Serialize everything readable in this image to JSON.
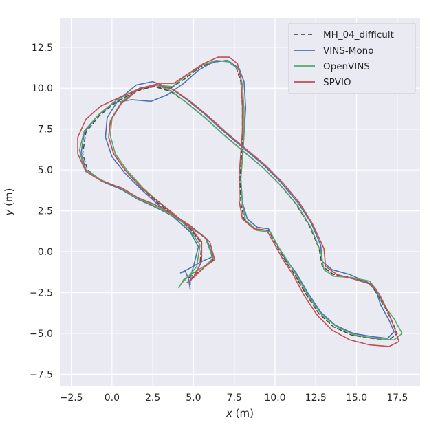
{
  "chart_data": {
    "type": "line",
    "xlabel": {
      "var": "x",
      "unit": " (m)"
    },
    "ylabel": {
      "var": "y",
      "unit": " (m)"
    },
    "xlim": [
      -3.2,
      18.9
    ],
    "ylim": [
      -8.2,
      14.3
    ],
    "xticks": [
      -2.5,
      0.0,
      2.5,
      5.0,
      7.5,
      10.0,
      12.5,
      15.0,
      17.5
    ],
    "xtick_labels": [
      "−2.5",
      "0.0",
      "2.5",
      "5.0",
      "7.5",
      "10.0",
      "12.5",
      "15.0",
      "17.5"
    ],
    "yticks": [
      -7.5,
      -5.0,
      -2.5,
      0.0,
      2.5,
      5.0,
      7.5,
      10.0,
      12.5
    ],
    "ytick_labels": [
      "−7.5",
      "−5.0",
      "−2.5",
      "0.0",
      "2.5",
      "5.0",
      "7.5",
      "10.0",
      "12.5"
    ],
    "grid": true,
    "background": "#eaeaf2",
    "legend_position": "top-right",
    "series": [
      {
        "name": "MH_04_difficult",
        "color": "#4d4d4d",
        "dash": "6,4",
        "points": [
          [
            4.7,
            -1.6
          ],
          [
            5.5,
            -1.1
          ],
          [
            6.2,
            -0.5
          ],
          [
            5.8,
            0.8
          ],
          [
            4.5,
            1.7
          ],
          [
            3.5,
            2.3
          ],
          [
            2.5,
            2.8
          ],
          [
            1.6,
            3.2
          ],
          [
            0.6,
            3.8
          ],
          [
            -0.6,
            4.3
          ],
          [
            -1.5,
            5.0
          ],
          [
            -1.8,
            6.0
          ],
          [
            -1.6,
            7.3
          ],
          [
            -0.8,
            8.3
          ],
          [
            0.2,
            9.1
          ],
          [
            1.4,
            9.8
          ],
          [
            2.5,
            10.1
          ],
          [
            3.6,
            10.0
          ],
          [
            4.5,
            10.6
          ],
          [
            5.4,
            11.3
          ],
          [
            6.3,
            11.6
          ],
          [
            7.0,
            11.7
          ],
          [
            7.6,
            11.3
          ],
          [
            7.9,
            10.4
          ],
          [
            8.0,
            8.8
          ],
          [
            8.0,
            7.2
          ],
          [
            7.95,
            5.8
          ],
          [
            7.85,
            4.5
          ],
          [
            7.9,
            3.0
          ],
          [
            8.1,
            2.0
          ],
          [
            8.8,
            1.4
          ],
          [
            9.6,
            1.3
          ],
          [
            10.1,
            0.4
          ],
          [
            10.6,
            -0.5
          ],
          [
            11.2,
            -1.4
          ],
          [
            11.9,
            -2.6
          ],
          [
            12.7,
            -3.8
          ],
          [
            13.6,
            -4.6
          ],
          [
            14.7,
            -5.1
          ],
          [
            15.9,
            -5.3
          ],
          [
            17.0,
            -5.4
          ],
          [
            17.5,
            -5.0
          ],
          [
            17.2,
            -4.3
          ],
          [
            16.8,
            -3.5
          ],
          [
            16.2,
            -2.5
          ],
          [
            15.8,
            -1.9
          ],
          [
            14.8,
            -1.6
          ],
          [
            13.6,
            -1.4
          ],
          [
            12.9,
            -0.9
          ],
          [
            12.7,
            0.2
          ],
          [
            12.1,
            1.6
          ],
          [
            11.3,
            2.9
          ],
          [
            10.3,
            4.1
          ],
          [
            9.2,
            5.2
          ],
          [
            8.0,
            6.2
          ],
          [
            6.8,
            7.2
          ],
          [
            5.7,
            8.2
          ],
          [
            4.6,
            9.1
          ],
          [
            3.6,
            9.8
          ],
          [
            2.6,
            10.1
          ],
          [
            1.6,
            9.9
          ],
          [
            0.5,
            9.0
          ],
          [
            -0.1,
            8.0
          ],
          [
            -0.2,
            7.0
          ],
          [
            0.1,
            6.0
          ],
          [
            0.8,
            5.0
          ],
          [
            1.8,
            3.9
          ],
          [
            2.8,
            3.0
          ],
          [
            3.8,
            2.2
          ],
          [
            4.8,
            1.4
          ],
          [
            5.5,
            0.5
          ],
          [
            5.4,
            -0.8
          ],
          [
            5.0,
            -1.5
          ],
          [
            4.7,
            -1.8
          ]
        ]
      },
      {
        "name": "VINS-Mono",
        "color": "#4c72b0",
        "dash": "",
        "points": [
          [
            4.8,
            -2.3
          ],
          [
            4.7,
            -1.7
          ],
          [
            4.5,
            -1.2
          ],
          [
            4.2,
            -1.3
          ],
          [
            4.8,
            -1.0
          ],
          [
            5.5,
            -0.6
          ],
          [
            6.2,
            -0.3
          ],
          [
            5.8,
            0.8
          ],
          [
            4.5,
            1.7
          ],
          [
            3.5,
            2.3
          ],
          [
            2.5,
            2.8
          ],
          [
            1.6,
            3.2
          ],
          [
            0.6,
            3.8
          ],
          [
            -0.6,
            4.3
          ],
          [
            -1.6,
            5.0
          ],
          [
            -1.9,
            6.0
          ],
          [
            -1.7,
            7.3
          ],
          [
            -0.9,
            8.3
          ],
          [
            0.1,
            9.1
          ],
          [
            1.2,
            9.3
          ],
          [
            2.4,
            9.2
          ],
          [
            3.4,
            9.6
          ],
          [
            4.4,
            10.3
          ],
          [
            5.3,
            11.1
          ],
          [
            6.2,
            11.6
          ],
          [
            7.1,
            11.7
          ],
          [
            7.8,
            11.2
          ],
          [
            8.1,
            10.4
          ],
          [
            8.2,
            8.8
          ],
          [
            8.1,
            7.2
          ],
          [
            8.0,
            5.8
          ],
          [
            7.9,
            4.5
          ],
          [
            8.0,
            3.0
          ],
          [
            8.3,
            2.0
          ],
          [
            8.9,
            1.5
          ],
          [
            9.6,
            1.4
          ],
          [
            10.1,
            0.5
          ],
          [
            10.6,
            -0.4
          ],
          [
            11.3,
            -1.3
          ],
          [
            12.0,
            -2.5
          ],
          [
            12.8,
            -3.7
          ],
          [
            13.7,
            -4.5
          ],
          [
            14.8,
            -5.0
          ],
          [
            16.0,
            -5.2
          ],
          [
            16.9,
            -5.3
          ],
          [
            17.3,
            -4.9
          ],
          [
            17.0,
            -4.2
          ],
          [
            16.5,
            -3.3
          ],
          [
            16.2,
            -2.4
          ],
          [
            15.7,
            -1.9
          ],
          [
            14.6,
            -1.4
          ],
          [
            13.5,
            -1.1
          ],
          [
            12.9,
            -0.6
          ],
          [
            12.8,
            0.4
          ],
          [
            12.2,
            1.8
          ],
          [
            11.4,
            3.0
          ],
          [
            10.4,
            4.2
          ],
          [
            9.3,
            5.3
          ],
          [
            8.1,
            6.3
          ],
          [
            6.8,
            7.4
          ],
          [
            5.7,
            8.4
          ],
          [
            4.6,
            9.3
          ],
          [
            3.6,
            10.0
          ],
          [
            2.5,
            10.4
          ],
          [
            1.5,
            10.2
          ],
          [
            0.4,
            9.3
          ],
          [
            -0.3,
            8.2
          ],
          [
            -0.4,
            7.0
          ],
          [
            0.0,
            5.8
          ],
          [
            0.8,
            4.8
          ],
          [
            1.8,
            3.8
          ],
          [
            2.8,
            2.9
          ],
          [
            3.8,
            2.1
          ],
          [
            4.8,
            1.2
          ],
          [
            5.3,
            0.3
          ],
          [
            5.0,
            -0.9
          ],
          [
            4.8,
            -1.6
          ],
          [
            4.8,
            -2.0
          ]
        ]
      },
      {
        "name": "OpenVINS",
        "color": "#55a868",
        "dash": "",
        "points": [
          [
            4.1,
            -2.2
          ],
          [
            4.4,
            -1.7
          ],
          [
            5.0,
            -1.3
          ],
          [
            5.8,
            -0.8
          ],
          [
            6.2,
            -0.4
          ],
          [
            5.7,
            0.9
          ],
          [
            4.4,
            1.8
          ],
          [
            3.4,
            2.4
          ],
          [
            2.4,
            2.9
          ],
          [
            1.5,
            3.3
          ],
          [
            0.5,
            3.9
          ],
          [
            -0.7,
            4.4
          ],
          [
            -1.7,
            5.1
          ],
          [
            -2.0,
            6.2
          ],
          [
            -1.7,
            7.4
          ],
          [
            -0.8,
            8.4
          ],
          [
            0.3,
            9.3
          ],
          [
            1.5,
            9.9
          ],
          [
            2.6,
            10.2
          ],
          [
            3.7,
            10.1
          ],
          [
            4.6,
            10.8
          ],
          [
            5.5,
            11.4
          ],
          [
            6.4,
            11.7
          ],
          [
            7.2,
            11.6
          ],
          [
            7.8,
            11.1
          ],
          [
            8.0,
            10.2
          ],
          [
            8.1,
            8.7
          ],
          [
            8.1,
            7.1
          ],
          [
            8.0,
            5.7
          ],
          [
            7.9,
            4.4
          ],
          [
            8.0,
            2.9
          ],
          [
            8.2,
            1.9
          ],
          [
            8.9,
            1.3
          ],
          [
            9.7,
            1.2
          ],
          [
            10.2,
            0.3
          ],
          [
            10.8,
            -0.6
          ],
          [
            11.4,
            -1.6
          ],
          [
            12.1,
            -2.8
          ],
          [
            12.9,
            -3.9
          ],
          [
            13.8,
            -4.6
          ],
          [
            14.9,
            -5.1
          ],
          [
            16.1,
            -5.3
          ],
          [
            17.3,
            -5.4
          ],
          [
            17.8,
            -5.0
          ],
          [
            17.3,
            -4.1
          ],
          [
            16.7,
            -3.3
          ],
          [
            16.2,
            -2.3
          ],
          [
            15.8,
            -1.8
          ],
          [
            14.8,
            -1.6
          ],
          [
            13.6,
            -1.5
          ],
          [
            13.0,
            -1.1
          ],
          [
            12.8,
            0.0
          ],
          [
            12.2,
            1.5
          ],
          [
            11.4,
            2.8
          ],
          [
            10.4,
            4.0
          ],
          [
            9.3,
            5.1
          ],
          [
            8.1,
            6.1
          ],
          [
            6.9,
            7.1
          ],
          [
            5.8,
            8.1
          ],
          [
            4.7,
            9.0
          ],
          [
            3.7,
            9.8
          ],
          [
            2.7,
            10.2
          ],
          [
            1.7,
            10.0
          ],
          [
            0.6,
            9.2
          ],
          [
            0.0,
            8.2
          ],
          [
            -0.1,
            7.1
          ],
          [
            0.2,
            6.0
          ],
          [
            0.9,
            5.0
          ],
          [
            1.9,
            3.9
          ],
          [
            2.9,
            3.0
          ],
          [
            3.9,
            2.2
          ],
          [
            4.8,
            1.3
          ],
          [
            5.4,
            0.4
          ],
          [
            5.2,
            -0.9
          ],
          [
            4.7,
            -1.5
          ],
          [
            4.3,
            -1.9
          ]
        ]
      },
      {
        "name": "SPVIO",
        "color": "#c44e52",
        "dash": "",
        "points": [
          [
            4.6,
            -1.9
          ],
          [
            5.1,
            -1.5
          ],
          [
            5.7,
            -0.9
          ],
          [
            6.3,
            -0.5
          ],
          [
            6.0,
            0.6
          ],
          [
            4.8,
            1.6
          ],
          [
            3.7,
            2.3
          ],
          [
            2.6,
            2.9
          ],
          [
            1.6,
            3.3
          ],
          [
            0.6,
            3.9
          ],
          [
            -0.6,
            4.3
          ],
          [
            -1.6,
            4.9
          ],
          [
            -2.1,
            6.0
          ],
          [
            -2.1,
            7.0
          ],
          [
            -1.6,
            8.1
          ],
          [
            -0.7,
            8.9
          ],
          [
            0.6,
            9.5
          ],
          [
            1.8,
            10.0
          ],
          [
            2.9,
            10.3
          ],
          [
            3.8,
            10.3
          ],
          [
            4.7,
            10.9
          ],
          [
            5.6,
            11.5
          ],
          [
            6.5,
            11.9
          ],
          [
            7.2,
            11.9
          ],
          [
            7.7,
            11.5
          ],
          [
            7.9,
            10.6
          ],
          [
            8.0,
            9.0
          ],
          [
            8.0,
            7.4
          ],
          [
            7.9,
            6.0
          ],
          [
            7.8,
            4.7
          ],
          [
            7.8,
            3.1
          ],
          [
            8.0,
            2.0
          ],
          [
            8.7,
            1.4
          ],
          [
            9.5,
            1.3
          ],
          [
            10.0,
            0.4
          ],
          [
            10.5,
            -0.5
          ],
          [
            11.1,
            -1.4
          ],
          [
            11.8,
            -2.7
          ],
          [
            12.6,
            -3.9
          ],
          [
            13.5,
            -4.8
          ],
          [
            14.6,
            -5.4
          ],
          [
            15.8,
            -5.7
          ],
          [
            17.0,
            -5.8
          ],
          [
            17.6,
            -5.5
          ],
          [
            17.3,
            -4.6
          ],
          [
            16.9,
            -3.6
          ],
          [
            16.4,
            -2.6
          ],
          [
            15.9,
            -2.0
          ],
          [
            14.9,
            -1.7
          ],
          [
            13.8,
            -1.4
          ],
          [
            13.1,
            -0.9
          ],
          [
            13.0,
            0.2
          ],
          [
            12.3,
            1.7
          ],
          [
            11.5,
            3.0
          ],
          [
            10.5,
            4.2
          ],
          [
            9.4,
            5.3
          ],
          [
            8.2,
            6.3
          ],
          [
            7.0,
            7.3
          ],
          [
            5.9,
            8.3
          ],
          [
            4.8,
            9.2
          ],
          [
            3.8,
            9.9
          ],
          [
            2.8,
            10.2
          ],
          [
            1.7,
            10.0
          ],
          [
            0.6,
            9.1
          ],
          [
            -0.1,
            8.0
          ],
          [
            -0.2,
            7.0
          ],
          [
            0.1,
            6.0
          ],
          [
            0.8,
            5.0
          ],
          [
            1.8,
            3.9
          ],
          [
            2.8,
            3.1
          ],
          [
            3.8,
            2.3
          ],
          [
            4.8,
            1.5
          ],
          [
            5.5,
            0.6
          ],
          [
            5.5,
            -0.6
          ],
          [
            5.1,
            -1.4
          ],
          [
            4.8,
            -1.8
          ]
        ]
      }
    ]
  }
}
